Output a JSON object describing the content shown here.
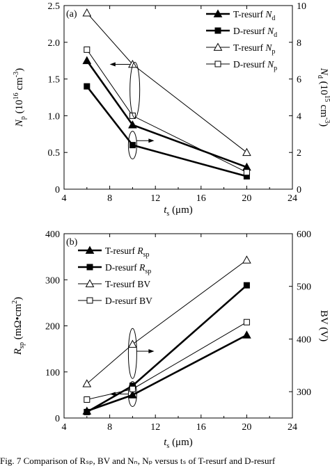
{
  "caption_fragment": "Fig. 7  Comparison of Rₛₚ, BV and Nₙ, Nₚ versus tₛ of T-resurf and D-resurf",
  "chart_data": [
    {
      "panel": "(a)",
      "type": "line",
      "xlabel": {
        "main": "t",
        "sub": "s",
        "unit": "(μm)"
      },
      "xlim": [
        4,
        24
      ],
      "xticks": [
        "4",
        "8",
        "12",
        "16",
        "20",
        "24"
      ],
      "ylabel_left": {
        "main": "N",
        "sub": "p",
        "unit": "(10",
        "exp": "16",
        "unit2": " cm",
        "exp2": "-3",
        "close": ")"
      },
      "ylim_left": [
        0,
        2.5
      ],
      "yticks_left": [
        "0",
        "0.5",
        "1.0",
        "1.5",
        "2.0",
        "2.5"
      ],
      "ylabel_right": {
        "main": "N",
        "sub": "d",
        "unit": "(10",
        "exp": "15",
        "unit2": " cm",
        "exp2": "-3",
        "close": ")"
      },
      "ylim_right": [
        0,
        10
      ],
      "yticks_right": [
        "0",
        "2",
        "4",
        "6",
        "8",
        "10"
      ],
      "legend_position": "top-right",
      "series": [
        {
          "name": "T-resurf N",
          "sub": "d",
          "axis": "right",
          "marker": "triangle-filled",
          "bold": true,
          "x": [
            6,
            10,
            20
          ],
          "y": [
            7.0,
            3.5,
            1.2
          ]
        },
        {
          "name": "D-resurf N",
          "sub": "d",
          "axis": "right",
          "marker": "square-filled",
          "bold": true,
          "x": [
            6,
            10,
            20
          ],
          "y": [
            5.6,
            2.4,
            0.7
          ]
        },
        {
          "name": "T-resurf N",
          "sub": "p",
          "axis": "left",
          "marker": "triangle-open",
          "bold": false,
          "x": [
            6,
            10,
            20
          ],
          "y": [
            2.4,
            1.7,
            0.5
          ]
        },
        {
          "name": "D-resurf N",
          "sub": "p",
          "axis": "left",
          "marker": "square-open",
          "bold": false,
          "x": [
            6,
            10,
            20
          ],
          "y": [
            1.9,
            1.0,
            0.23
          ]
        }
      ]
    },
    {
      "panel": "(b)",
      "type": "line",
      "xlabel": {
        "main": "t",
        "sub": "s",
        "unit": "(μm)"
      },
      "xlim": [
        4,
        24
      ],
      "xticks": [
        "4",
        "8",
        "12",
        "16",
        "20",
        "24"
      ],
      "ylabel_left": {
        "main": "R",
        "sub": "sp",
        "unit": "(mΩ•cm",
        "exp": "2",
        "close": ")"
      },
      "ylim_left": [
        0,
        400
      ],
      "yticks_left": [
        "0",
        "100",
        "200",
        "300",
        "400"
      ],
      "ylabel_right": {
        "main": "BV (V)"
      },
      "ylim_right": [
        250,
        600
      ],
      "yticks_right": [
        "300",
        "400",
        "500",
        "600"
      ],
      "legend_position": "top-left",
      "series": [
        {
          "name": "T-resurf R",
          "sub": "sp",
          "axis": "left",
          "marker": "triangle-filled",
          "bold": true,
          "x": [
            6,
            10,
            20
          ],
          "y": [
            15,
            50,
            180
          ]
        },
        {
          "name": "D-resurf R",
          "sub": "sp",
          "axis": "left",
          "marker": "square-filled",
          "bold": true,
          "x": [
            6,
            10,
            20
          ],
          "y": [
            13,
            70,
            288
          ]
        },
        {
          "name": "T-resurf BV",
          "sub": "",
          "axis": "right",
          "marker": "triangle-open",
          "bold": false,
          "x": [
            6,
            10,
            20
          ],
          "y": [
            315,
            390,
            550
          ]
        },
        {
          "name": "D-resurf BV",
          "sub": "",
          "axis": "right",
          "marker": "square-open",
          "bold": false,
          "x": [
            6,
            10,
            20
          ],
          "y": [
            285,
            305,
            432
          ]
        }
      ]
    }
  ]
}
